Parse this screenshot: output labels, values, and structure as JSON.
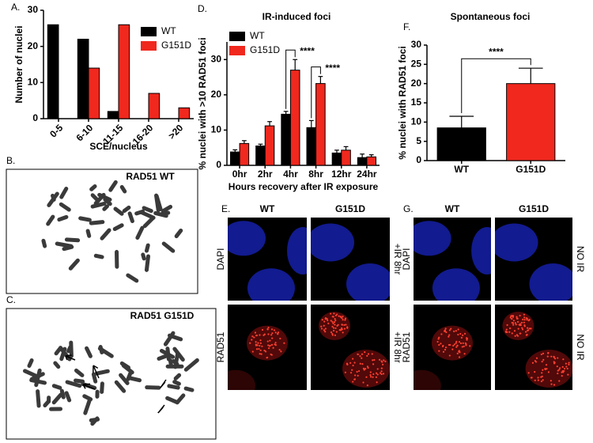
{
  "panels": {
    "A": "A.",
    "B": "B.",
    "C": "C.",
    "D": "D.",
    "E": "E.",
    "F": "F.",
    "G": "G."
  },
  "chart_data": [
    {
      "type": "bar",
      "xlabel": "SCE/nucleus",
      "ylabel": "Number of nuclei",
      "categories": [
        "0-5",
        "6-10",
        "11-15",
        "16-20",
        ">20"
      ],
      "series": [
        {
          "name": "WT",
          "color": "#000000",
          "values": [
            26,
            22,
            2,
            0,
            0
          ]
        },
        {
          "name": "G151D",
          "color": "#f0281e",
          "values": [
            0,
            14,
            26,
            7,
            3
          ]
        }
      ],
      "ylim": [
        0,
        30
      ],
      "yticks": [
        0,
        10,
        20,
        30
      ]
    },
    {
      "type": "bar",
      "title": "IR-induced foci",
      "xlabel": "Hours recovery after IR exposure",
      "ylabel": "% nuclei with >10 RAD51 foci",
      "categories": [
        "0hr",
        "2hr",
        "4hr",
        "8hr",
        "12hr",
        "24hr"
      ],
      "series": [
        {
          "name": "WT",
          "color": "#000000",
          "values": [
            3.8,
            5.5,
            14.5,
            10.7,
            3.5,
            2.2
          ],
          "errors": [
            0.6,
            0.5,
            0.8,
            2,
            0.8,
            1
          ]
        },
        {
          "name": "G151D",
          "color": "#f0281e",
          "values": [
            6.2,
            11.2,
            27,
            23.2,
            4.3,
            2.4
          ],
          "errors": [
            0.8,
            1.2,
            3,
            2,
            1,
            0.6
          ]
        }
      ],
      "annotations": [
        "****",
        "****"
      ],
      "ylim": [
        0,
        35
      ],
      "yticks": [
        0,
        10,
        20,
        30
      ]
    },
    {
      "type": "bar",
      "title": "Spontaneous foci",
      "ylabel": "% nuclei with RAD51 foci",
      "categories": [
        "WT",
        "G151D"
      ],
      "values": [
        8.5,
        20
      ],
      "errors": [
        3,
        4
      ],
      "colors": [
        "#000000",
        "#f0281e"
      ],
      "annotations": [
        "****"
      ],
      "ylim": [
        0,
        30
      ],
      "yticks": [
        0,
        5,
        10,
        15,
        20,
        25,
        30
      ]
    }
  ],
  "images": {
    "B": {
      "label": "RAD51 WT"
    },
    "C": {
      "label": "RAD51 G151D"
    },
    "E": {
      "columns": [
        "WT",
        "G151D"
      ],
      "rows": [
        "DAPI",
        "RAD51"
      ],
      "conditions": [
        "+IR 8hr",
        "+IR 8hr"
      ]
    },
    "G": {
      "columns": [
        "WT",
        "G151D"
      ],
      "rows": [
        "DAPI",
        "RAD51"
      ],
      "conditions": [
        "NO IR",
        "NO IR"
      ]
    }
  }
}
